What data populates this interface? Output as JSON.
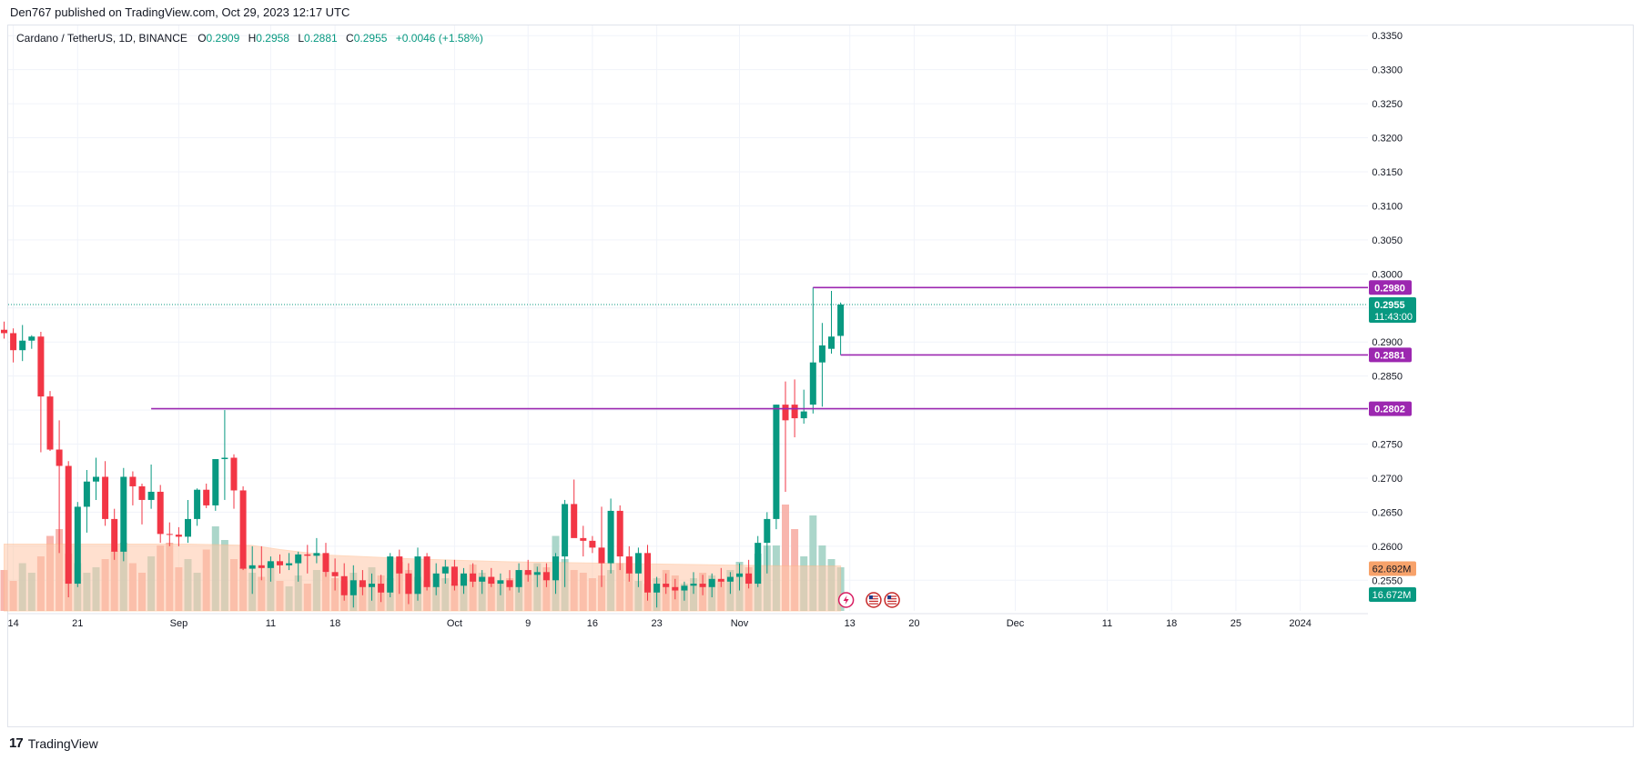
{
  "header": {
    "published_text": "Den767 published on TradingView.com, Oct 29, 2023 12:17 UTC"
  },
  "legend": {
    "symbol": "Cardano / TetherUS, 1D, BINANCE",
    "open_label": "O",
    "open": "0.2909",
    "high_label": "H",
    "high": "0.2958",
    "low_label": "L",
    "low": "0.2881",
    "close_label": "C",
    "close": "0.2955",
    "change": "+0.0046 (+1.58%)"
  },
  "footer": {
    "brand_mark": "17",
    "brand": "TradingView"
  },
  "colors": {
    "up": "#089981",
    "down": "#f23645",
    "vol_up": "#9ccfc1",
    "vol_down": "#f7a9a0",
    "vol_ma": "#ffc8a8",
    "level": "#9c27b0",
    "grid": "#f0f3fa",
    "axis_text": "#131722"
  },
  "chart_data": {
    "type": "candlestick",
    "symbol": "Cardano / TetherUS, 1D, BINANCE",
    "price_axis": {
      "ylim": [
        0.2505,
        0.3365
      ],
      "ticks": [
        "0.2550",
        "0.2600",
        "0.2650",
        "0.2700",
        "0.2750",
        "0.2800",
        "0.2850",
        "0.2900",
        "0.2950",
        "0.3000",
        "0.3050",
        "0.3100",
        "0.3150",
        "0.3200",
        "0.3250",
        "0.3300",
        "0.3350"
      ]
    },
    "time_axis": {
      "start_date": "2023-08-13",
      "ticks": [
        {
          "label": "14",
          "date": "2023-08-14"
        },
        {
          "label": "21",
          "date": "2023-08-21"
        },
        {
          "label": "Sep",
          "date": "2023-09-01"
        },
        {
          "label": "11",
          "date": "2023-09-11"
        },
        {
          "label": "18",
          "date": "2023-09-18"
        },
        {
          "label": "Oct",
          "date": "2023-10-01"
        },
        {
          "label": "9",
          "date": "2023-10-09"
        },
        {
          "label": "16",
          "date": "2023-10-16"
        },
        {
          "label": "23",
          "date": "2023-10-23"
        },
        {
          "label": "Nov",
          "date": "2023-11-01"
        },
        {
          "label": "13",
          "date": "2023-11-13"
        },
        {
          "label": "20",
          "date": "2023-11-20"
        },
        {
          "label": "Dec",
          "date": "2023-12-01"
        },
        {
          "label": "11",
          "date": "2023-12-11"
        },
        {
          "label": "18",
          "date": "2023-12-18"
        },
        {
          "label": "25",
          "date": "2023-12-25"
        },
        {
          "label": "2024",
          "date": "2024-01-01"
        }
      ]
    },
    "candles": [
      {
        "o": 0.2918,
        "h": 0.293,
        "l": 0.2905,
        "c": 0.2913
      },
      {
        "o": 0.2913,
        "h": 0.292,
        "l": 0.287,
        "c": 0.2888
      },
      {
        "o": 0.2888,
        "h": 0.2925,
        "l": 0.2872,
        "c": 0.2902
      },
      {
        "o": 0.2902,
        "h": 0.291,
        "l": 0.289,
        "c": 0.2908
      },
      {
        "o": 0.2908,
        "h": 0.2915,
        "l": 0.2738,
        "c": 0.282
      },
      {
        "o": 0.282,
        "h": 0.2828,
        "l": 0.274,
        "c": 0.2742
      },
      {
        "o": 0.2742,
        "h": 0.2785,
        "l": 0.259,
        "c": 0.2718
      },
      {
        "o": 0.2718,
        "h": 0.2725,
        "l": 0.2525,
        "c": 0.2545
      },
      {
        "o": 0.2545,
        "h": 0.2665,
        "l": 0.254,
        "c": 0.2658
      },
      {
        "o": 0.2658,
        "h": 0.2712,
        "l": 0.262,
        "c": 0.2695
      },
      {
        "o": 0.2695,
        "h": 0.273,
        "l": 0.2668,
        "c": 0.2702
      },
      {
        "o": 0.2702,
        "h": 0.2725,
        "l": 0.263,
        "c": 0.264
      },
      {
        "o": 0.264,
        "h": 0.2655,
        "l": 0.258,
        "c": 0.2592
      },
      {
        "o": 0.2592,
        "h": 0.2715,
        "l": 0.2578,
        "c": 0.2702
      },
      {
        "o": 0.2702,
        "h": 0.271,
        "l": 0.266,
        "c": 0.2688
      },
      {
        "o": 0.2688,
        "h": 0.2692,
        "l": 0.2632,
        "c": 0.2668
      },
      {
        "o": 0.2668,
        "h": 0.272,
        "l": 0.2655,
        "c": 0.268
      },
      {
        "o": 0.268,
        "h": 0.269,
        "l": 0.2605,
        "c": 0.2618
      },
      {
        "o": 0.2618,
        "h": 0.2635,
        "l": 0.26,
        "c": 0.2617
      },
      {
        "o": 0.2617,
        "h": 0.2628,
        "l": 0.26,
        "c": 0.2614
      },
      {
        "o": 0.2614,
        "h": 0.2668,
        "l": 0.2605,
        "c": 0.264
      },
      {
        "o": 0.264,
        "h": 0.2685,
        "l": 0.263,
        "c": 0.2683
      },
      {
        "o": 0.2683,
        "h": 0.2692,
        "l": 0.2656,
        "c": 0.266
      },
      {
        "o": 0.266,
        "h": 0.2728,
        "l": 0.2652,
        "c": 0.2728
      },
      {
        "o": 0.2728,
        "h": 0.28,
        "l": 0.2668,
        "c": 0.273
      },
      {
        "o": 0.273,
        "h": 0.2735,
        "l": 0.2655,
        "c": 0.2682
      },
      {
        "o": 0.2682,
        "h": 0.2688,
        "l": 0.2565,
        "c": 0.2567
      },
      {
        "o": 0.2567,
        "h": 0.26,
        "l": 0.253,
        "c": 0.2572
      },
      {
        "o": 0.2572,
        "h": 0.26,
        "l": 0.255,
        "c": 0.2568
      },
      {
        "o": 0.2568,
        "h": 0.2585,
        "l": 0.2548,
        "c": 0.2578
      },
      {
        "o": 0.2578,
        "h": 0.2588,
        "l": 0.256,
        "c": 0.2572
      },
      {
        "o": 0.2572,
        "h": 0.259,
        "l": 0.2565,
        "c": 0.2575
      },
      {
        "o": 0.2575,
        "h": 0.2592,
        "l": 0.2548,
        "c": 0.2588
      },
      {
        "o": 0.2588,
        "h": 0.2602,
        "l": 0.256,
        "c": 0.2586
      },
      {
        "o": 0.2586,
        "h": 0.2612,
        "l": 0.2575,
        "c": 0.259
      },
      {
        "o": 0.259,
        "h": 0.2605,
        "l": 0.2555,
        "c": 0.2562
      },
      {
        "o": 0.2562,
        "h": 0.2582,
        "l": 0.2535,
        "c": 0.2556
      },
      {
        "o": 0.2556,
        "h": 0.2575,
        "l": 0.252,
        "c": 0.2528
      },
      {
        "o": 0.2528,
        "h": 0.2572,
        "l": 0.251,
        "c": 0.255
      },
      {
        "o": 0.255,
        "h": 0.2565,
        "l": 0.2528,
        "c": 0.254
      },
      {
        "o": 0.254,
        "h": 0.256,
        "l": 0.252,
        "c": 0.2545
      },
      {
        "o": 0.2545,
        "h": 0.2558,
        "l": 0.2518,
        "c": 0.2532
      },
      {
        "o": 0.2532,
        "h": 0.259,
        "l": 0.2525,
        "c": 0.2585
      },
      {
        "o": 0.2585,
        "h": 0.2595,
        "l": 0.253,
        "c": 0.256
      },
      {
        "o": 0.256,
        "h": 0.2575,
        "l": 0.2515,
        "c": 0.253
      },
      {
        "o": 0.253,
        "h": 0.2598,
        "l": 0.252,
        "c": 0.2585
      },
      {
        "o": 0.2585,
        "h": 0.259,
        "l": 0.2535,
        "c": 0.254
      },
      {
        "o": 0.254,
        "h": 0.2575,
        "l": 0.2528,
        "c": 0.256
      },
      {
        "o": 0.256,
        "h": 0.258,
        "l": 0.2545,
        "c": 0.257
      },
      {
        "o": 0.257,
        "h": 0.258,
        "l": 0.2535,
        "c": 0.2542
      },
      {
        "o": 0.2542,
        "h": 0.2568,
        "l": 0.253,
        "c": 0.256
      },
      {
        "o": 0.256,
        "h": 0.2575,
        "l": 0.254,
        "c": 0.2548
      },
      {
        "o": 0.2548,
        "h": 0.2565,
        "l": 0.253,
        "c": 0.2555
      },
      {
        "o": 0.2555,
        "h": 0.2568,
        "l": 0.254,
        "c": 0.2545
      },
      {
        "o": 0.2545,
        "h": 0.256,
        "l": 0.2528,
        "c": 0.255
      },
      {
        "o": 0.255,
        "h": 0.2565,
        "l": 0.2535,
        "c": 0.254
      },
      {
        "o": 0.254,
        "h": 0.2575,
        "l": 0.2532,
        "c": 0.2565
      },
      {
        "o": 0.2565,
        "h": 0.258,
        "l": 0.2548,
        "c": 0.2558
      },
      {
        "o": 0.2558,
        "h": 0.257,
        "l": 0.254,
        "c": 0.2562
      },
      {
        "o": 0.2562,
        "h": 0.2575,
        "l": 0.254,
        "c": 0.255
      },
      {
        "o": 0.255,
        "h": 0.259,
        "l": 0.253,
        "c": 0.2585
      },
      {
        "o": 0.2585,
        "h": 0.2668,
        "l": 0.254,
        "c": 0.2662
      },
      {
        "o": 0.2662,
        "h": 0.2698,
        "l": 0.2615,
        "c": 0.2612
      },
      {
        "o": 0.2612,
        "h": 0.263,
        "l": 0.2585,
        "c": 0.2608
      },
      {
        "o": 0.2608,
        "h": 0.2615,
        "l": 0.259,
        "c": 0.2598
      },
      {
        "o": 0.2598,
        "h": 0.2658,
        "l": 0.254,
        "c": 0.2575
      },
      {
        "o": 0.2575,
        "h": 0.267,
        "l": 0.256,
        "c": 0.2652
      },
      {
        "o": 0.2652,
        "h": 0.266,
        "l": 0.2565,
        "c": 0.2585
      },
      {
        "o": 0.2585,
        "h": 0.26,
        "l": 0.2548,
        "c": 0.256
      },
      {
        "o": 0.256,
        "h": 0.2598,
        "l": 0.254,
        "c": 0.259
      },
      {
        "o": 0.259,
        "h": 0.2602,
        "l": 0.252,
        "c": 0.2532
      },
      {
        "o": 0.2532,
        "h": 0.2555,
        "l": 0.251,
        "c": 0.2545
      },
      {
        "o": 0.2545,
        "h": 0.256,
        "l": 0.253,
        "c": 0.254
      },
      {
        "o": 0.254,
        "h": 0.2552,
        "l": 0.2522,
        "c": 0.2535
      },
      {
        "o": 0.2535,
        "h": 0.2548,
        "l": 0.252,
        "c": 0.2542
      },
      {
        "o": 0.2542,
        "h": 0.2562,
        "l": 0.253,
        "c": 0.2545
      },
      {
        "o": 0.2545,
        "h": 0.2558,
        "l": 0.2528,
        "c": 0.254
      },
      {
        "o": 0.254,
        "h": 0.256,
        "l": 0.2525,
        "c": 0.2552
      },
      {
        "o": 0.2552,
        "h": 0.2568,
        "l": 0.254,
        "c": 0.2548
      },
      {
        "o": 0.2548,
        "h": 0.2562,
        "l": 0.253,
        "c": 0.2555
      },
      {
        "o": 0.2555,
        "h": 0.2575,
        "l": 0.2535,
        "c": 0.256
      },
      {
        "o": 0.256,
        "h": 0.258,
        "l": 0.2538,
        "c": 0.2545
      },
      {
        "o": 0.2545,
        "h": 0.2615,
        "l": 0.254,
        "c": 0.2605
      },
      {
        "o": 0.2605,
        "h": 0.265,
        "l": 0.256,
        "c": 0.264
      },
      {
        "o": 0.264,
        "h": 0.2808,
        "l": 0.2625,
        "c": 0.2808
      },
      {
        "o": 0.2808,
        "h": 0.2842,
        "l": 0.268,
        "c": 0.2785
      },
      {
        "o": 0.2808,
        "h": 0.2845,
        "l": 0.276,
        "c": 0.2788
      },
      {
        "o": 0.2788,
        "h": 0.283,
        "l": 0.278,
        "c": 0.2798
      },
      {
        "o": 0.2808,
        "h": 0.298,
        "l": 0.2795,
        "c": 0.287
      },
      {
        "o": 0.287,
        "h": 0.2928,
        "l": 0.2805,
        "c": 0.2895
      },
      {
        "o": 0.289,
        "h": 0.2975,
        "l": 0.2883,
        "c": 0.2908
      },
      {
        "o": 0.2909,
        "h": 0.2958,
        "l": 0.2881,
        "c": 0.2955
      }
    ],
    "volume": {
      "ylim": [
        0,
        100
      ],
      "values": [
        30,
        22,
        35,
        28,
        40,
        55,
        60,
        42,
        35,
        28,
        32,
        38,
        44,
        50,
        35,
        28,
        40,
        48,
        50,
        32,
        38,
        28,
        45,
        62,
        52,
        38,
        32,
        28,
        25,
        35,
        22,
        18,
        26,
        20,
        30,
        28,
        24,
        22,
        28,
        20,
        32,
        26,
        24,
        36,
        30,
        25,
        22,
        18,
        24,
        20,
        26,
        34,
        28,
        22,
        20,
        24,
        30,
        28,
        35,
        32,
        55,
        38,
        30,
        28,
        24,
        26,
        30,
        35,
        28,
        22,
        20,
        24,
        30,
        26,
        20,
        24,
        28,
        26,
        22,
        30,
        36,
        32,
        42,
        48,
        48,
        78,
        60,
        40,
        70,
        48,
        38,
        32
      ],
      "ma_label": "62.692M",
      "last_label": "16.672M",
      "ma_path": [
        [
          0,
          49
        ],
        [
          20,
          49
        ],
        [
          27,
          48
        ],
        [
          30,
          45
        ],
        [
          35,
          41
        ],
        [
          45,
          38
        ],
        [
          55,
          36
        ],
        [
          65,
          35
        ],
        [
          75,
          34
        ],
        [
          85,
          33
        ],
        [
          91,
          33
        ]
      ]
    },
    "levels": [
      {
        "value": 0.298,
        "label": "0.2980",
        "from_index": 88
      },
      {
        "value": 0.2881,
        "label": "0.2881",
        "from_index": 91
      },
      {
        "value": 0.2802,
        "label": "0.2802",
        "from_index": 16
      }
    ],
    "last_price": {
      "value": 0.2955,
      "label": "0.2955",
      "countdown": "11:43:00"
    },
    "events": [
      {
        "kind": "flash",
        "index": 91
      },
      {
        "kind": "us-flag",
        "index": 94
      },
      {
        "kind": "us-flag",
        "index": 96
      }
    ]
  }
}
